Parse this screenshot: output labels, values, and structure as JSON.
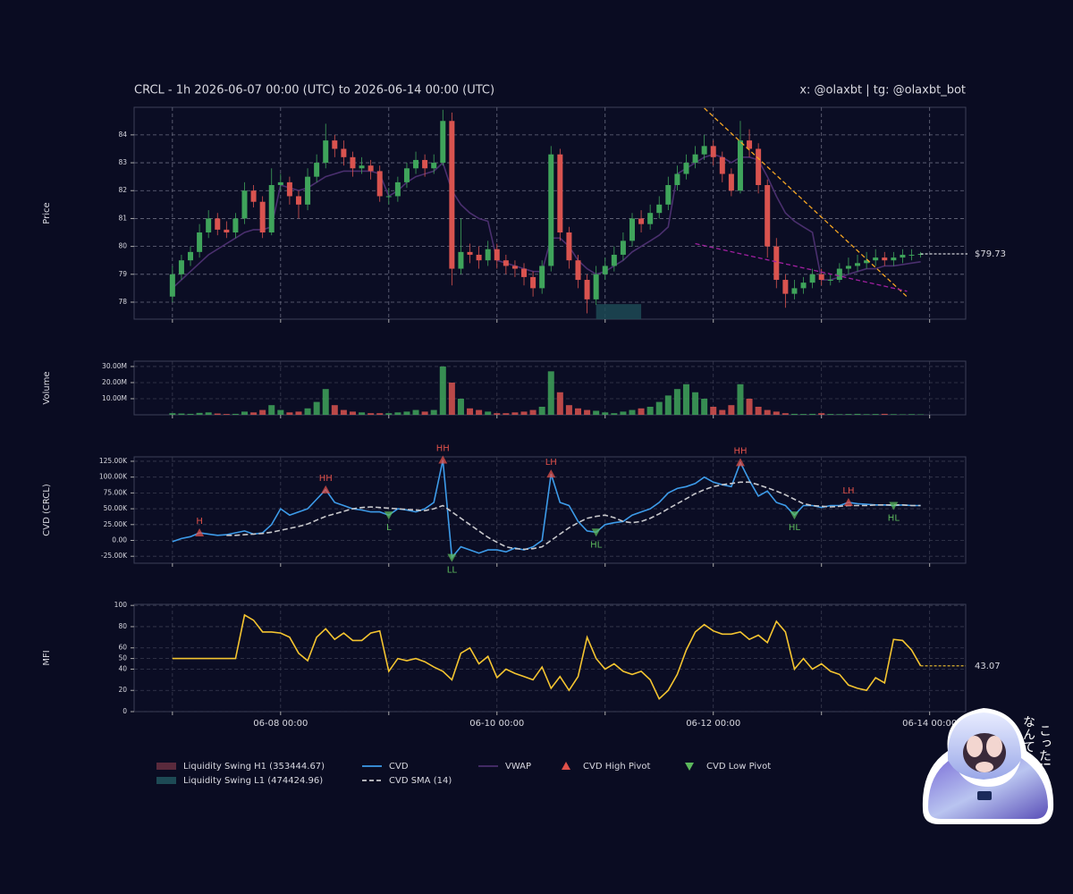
{
  "chart_data": {
    "type": "candlestick",
    "title": "CRCL - 1h 2026-06-07 00:00 (UTC) to 2026-06-14 00:00 (UTC)",
    "credit": "x: @olaxbt | tg: @olaxbt_bot",
    "xlim": [
      "06-06 15:30",
      "06-14 08:00"
    ],
    "xticks": [
      "06-08 00:00",
      "06-10 00:00",
      "06-12 00:00",
      "06-14 00:00"
    ],
    "xgrid": [
      "06-07 00:00",
      "06-08 00:00",
      "06-09 00:00",
      "06-10 00:00",
      "06-11 00:00",
      "06-12 00:00",
      "06-13 00:00",
      "06-14 00:00"
    ],
    "x": [
      "06-07 00:00",
      "06-07 02:00",
      "06-07 04:00",
      "06-07 06:00",
      "06-07 08:00",
      "06-07 10:00",
      "06-07 12:00",
      "06-07 14:00",
      "06-07 16:00",
      "06-07 18:00",
      "06-07 20:00",
      "06-07 22:00",
      "06-08 00:00",
      "06-08 02:00",
      "06-08 04:00",
      "06-08 06:00",
      "06-08 08:00",
      "06-08 10:00",
      "06-08 12:00",
      "06-08 14:00",
      "06-08 16:00",
      "06-08 18:00",
      "06-08 20:00",
      "06-08 22:00",
      "06-09 00:00",
      "06-09 02:00",
      "06-09 04:00",
      "06-09 06:00",
      "06-09 08:00",
      "06-09 10:00",
      "06-09 12:00",
      "06-09 14:00",
      "06-09 16:00",
      "06-09 18:00",
      "06-09 20:00",
      "06-09 22:00",
      "06-10 00:00",
      "06-10 02:00",
      "06-10 04:00",
      "06-10 06:00",
      "06-10 08:00",
      "06-10 10:00",
      "06-10 12:00",
      "06-10 14:00",
      "06-10 16:00",
      "06-10 18:00",
      "06-10 20:00",
      "06-10 22:00",
      "06-11 00:00",
      "06-11 02:00",
      "06-11 04:00",
      "06-11 06:00",
      "06-11 08:00",
      "06-11 10:00",
      "06-11 12:00",
      "06-11 14:00",
      "06-11 16:00",
      "06-11 18:00",
      "06-11 20:00",
      "06-11 22:00",
      "06-12 00:00",
      "06-12 02:00",
      "06-12 04:00",
      "06-12 06:00",
      "06-12 08:00",
      "06-12 10:00",
      "06-12 12:00",
      "06-12 14:00",
      "06-12 16:00",
      "06-12 18:00",
      "06-12 20:00",
      "06-12 22:00",
      "06-13 00:00",
      "06-13 02:00",
      "06-13 04:00",
      "06-13 06:00",
      "06-13 08:00",
      "06-13 10:00",
      "06-13 12:00",
      "06-13 14:00",
      "06-13 16:00",
      "06-13 18:00",
      "06-13 20:00",
      "06-13 22:00"
    ],
    "legend": "lower left",
    "price": {
      "type": "candlestick",
      "ylabel": "Price",
      "grid": true,
      "ylim": [
        77.39,
        84.99
      ],
      "yticks": [
        78,
        79,
        80,
        81,
        82,
        83,
        84
      ],
      "up_color": "#3fa45b",
      "down_color": "#d9534f",
      "open": [
        78.2,
        79.0,
        79.5,
        79.8,
        80.5,
        81.0,
        80.6,
        80.5,
        81.0,
        82.0,
        81.6,
        80.5,
        82.2,
        82.3,
        81.8,
        81.5,
        82.5,
        83.0,
        83.8,
        83.5,
        83.2,
        82.8,
        82.9,
        82.7,
        81.8,
        81.8,
        82.3,
        82.8,
        83.1,
        82.8,
        83.0,
        84.5,
        79.2,
        79.8,
        79.7,
        79.5,
        79.9,
        79.5,
        79.3,
        79.2,
        78.9,
        78.5,
        79.3,
        83.3,
        80.5,
        79.5,
        78.8,
        78.1,
        79.0,
        79.3,
        79.7,
        80.2,
        81.0,
        80.8,
        81.2,
        81.5,
        82.2,
        82.6,
        83.0,
        83.3,
        83.6,
        83.2,
        82.6,
        82.0,
        83.8,
        83.5,
        82.2,
        80.0,
        78.8,
        78.3,
        78.5,
        78.7,
        79.0,
        78.8,
        78.8,
        79.2,
        79.3,
        79.4,
        79.5,
        79.6,
        79.5,
        79.6,
        79.7,
        79.7
      ],
      "high": [
        79.3,
        79.7,
        80.0,
        80.8,
        81.3,
        81.2,
        80.9,
        81.2,
        82.3,
        82.2,
        81.8,
        82.8,
        82.6,
        82.5,
        82.0,
        82.8,
        83.3,
        84.4,
        84.0,
        83.8,
        83.4,
        83.2,
        83.1,
        82.9,
        82.1,
        82.5,
        83.0,
        83.4,
        83.3,
        83.3,
        84.9,
        84.8,
        81.0,
        80.1,
        80.0,
        80.2,
        80.1,
        79.7,
        79.5,
        79.4,
        79.1,
        79.5,
        83.6,
        83.5,
        80.7,
        79.7,
        79.0,
        79.3,
        79.6,
        80.0,
        80.5,
        81.2,
        81.3,
        81.5,
        81.8,
        82.5,
        82.9,
        83.3,
        83.6,
        84.0,
        83.8,
        83.4,
        82.8,
        84.5,
        84.2,
        83.7,
        82.4,
        80.3,
        79.0,
        78.8,
        78.9,
        79.2,
        79.2,
        79.0,
        79.4,
        79.6,
        79.7,
        79.8,
        79.9,
        79.8,
        79.8,
        79.9,
        79.9,
        79.8
      ],
      "low": [
        78.0,
        78.8,
        79.3,
        79.6,
        80.3,
        80.4,
        80.3,
        80.3,
        80.8,
        81.4,
        80.3,
        80.4,
        82.0,
        81.5,
        81.0,
        81.3,
        82.3,
        82.8,
        83.2,
        82.9,
        82.5,
        82.6,
        82.4,
        81.6,
        81.5,
        81.6,
        82.1,
        82.6,
        82.5,
        82.6,
        82.9,
        78.6,
        79.0,
        79.4,
        79.2,
        79.3,
        79.2,
        79.0,
        78.9,
        78.6,
        78.2,
        78.3,
        79.1,
        80.2,
        79.2,
        78.5,
        77.6,
        77.9,
        78.8,
        79.1,
        79.5,
        80.0,
        80.5,
        80.6,
        81.0,
        81.3,
        82.0,
        82.4,
        82.8,
        83.1,
        82.9,
        82.3,
        81.8,
        81.9,
        83.2,
        81.9,
        79.6,
        78.5,
        77.8,
        78.1,
        78.3,
        78.5,
        78.6,
        78.6,
        78.7,
        79.0,
        79.1,
        79.2,
        79.3,
        79.3,
        79.3,
        79.4,
        79.5,
        79.6
      ],
      "close": [
        79.0,
        79.5,
        79.8,
        80.5,
        81.0,
        80.6,
        80.5,
        81.0,
        82.0,
        81.6,
        80.5,
        82.2,
        82.3,
        81.8,
        81.5,
        82.5,
        83.0,
        83.8,
        83.5,
        83.2,
        82.8,
        82.9,
        82.7,
        81.8,
        81.8,
        82.3,
        82.8,
        83.1,
        82.8,
        83.0,
        84.5,
        79.2,
        79.8,
        79.7,
        79.5,
        79.9,
        79.5,
        79.3,
        79.2,
        78.9,
        78.5,
        79.3,
        83.3,
        80.5,
        79.5,
        78.8,
        78.1,
        79.0,
        79.3,
        79.7,
        80.2,
        81.0,
        80.8,
        81.2,
        81.5,
        82.2,
        82.6,
        83.0,
        83.3,
        83.6,
        83.2,
        82.6,
        82.0,
        83.8,
        83.5,
        82.2,
        80.0,
        78.8,
        78.3,
        78.5,
        78.7,
        79.0,
        78.8,
        78.8,
        79.2,
        79.3,
        79.4,
        79.5,
        79.6,
        79.5,
        79.6,
        79.7,
        79.7,
        79.73
      ],
      "vwap": {
        "name": "VWAP",
        "color": "#4a2f6e",
        "values": [
          78.5,
          78.8,
          79.1,
          79.4,
          79.7,
          79.9,
          80.1,
          80.3,
          80.5,
          80.6,
          80.6,
          80.7,
          82.2,
          82.1,
          82.0,
          82.1,
          82.3,
          82.5,
          82.6,
          82.7,
          82.7,
          82.7,
          82.7,
          82.6,
          81.8,
          82.0,
          82.3,
          82.5,
          82.6,
          82.7,
          83.0,
          82.0,
          81.5,
          81.2,
          81.0,
          80.9,
          79.5,
          79.4,
          79.3,
          79.2,
          79.1,
          79.1,
          80.3,
          80.3,
          80.0,
          79.5,
          79.2,
          79.0,
          79.1,
          79.3,
          79.5,
          79.8,
          80.0,
          80.2,
          80.4,
          80.7,
          82.6,
          82.8,
          83.0,
          83.2,
          83.3,
          83.2,
          83.0,
          83.2,
          83.2,
          83.1,
          82.5,
          81.8,
          81.2,
          80.9,
          80.7,
          80.5,
          78.8,
          78.8,
          78.9,
          79.0,
          79.1,
          79.2,
          79.2,
          79.3,
          79.3,
          79.35,
          79.4,
          79.45
        ]
      },
      "trendlines": [
        {
          "color": "#f5a623",
          "x": [
            "06-11 22:00",
            "06-13 19:00"
          ],
          "values": [
            84.96,
            78.19
          ]
        },
        {
          "color": "#a020a0",
          "x": [
            "06-11 20:00",
            "06-13 19:00"
          ],
          "values": [
            80.1,
            78.39
          ]
        }
      ],
      "liquidity_swings": [
        {
          "name": "Liquidity Swing H1 (353444.67)",
          "color": "#5a2a3c"
        },
        {
          "name": "Liquidity Swing L1 (474424.96)",
          "color": "#1d4a55",
          "x": [
            "06-10 22:00",
            "06-11 08:00"
          ],
          "range": [
            77.3,
            77.93
          ]
        }
      ],
      "last_price": {
        "value": 79.73,
        "label": "$79.73"
      }
    },
    "volume": {
      "type": "bar",
      "ylabel": "Volume",
      "grid": true,
      "ylim": [
        0,
        33300000
      ],
      "yticks": [
        {
          "value": 10000000,
          "label": "10.00M"
        },
        {
          "value": 20000000,
          "label": "20.00M"
        },
        {
          "value": 30000000,
          "label": "30.00M"
        }
      ],
      "values": [
        1000000,
        800000,
        600000,
        1200000,
        1500000,
        800000,
        500000,
        600000,
        2000000,
        1500000,
        3000000,
        6000000,
        3000000,
        1500000,
        2000000,
        4000000,
        8000000,
        16000000,
        6000000,
        3000000,
        2000000,
        1500000,
        1000000,
        1000000,
        1000000,
        1500000,
        2000000,
        3000000,
        2000000,
        3000000,
        30000000,
        20000000,
        10000000,
        4000000,
        3000000,
        2000000,
        1000000,
        1000000,
        1500000,
        2000000,
        3000000,
        5000000,
        27000000,
        14000000,
        6000000,
        4000000,
        3000000,
        2500000,
        1500000,
        1000000,
        2000000,
        3000000,
        4000000,
        5000000,
        8000000,
        12000000,
        16000000,
        19000000,
        14000000,
        10000000,
        5000000,
        3000000,
        6000000,
        19000000,
        10000000,
        5000000,
        3000000,
        2000000,
        1000000,
        600000,
        500000,
        600000,
        1000000,
        500000,
        400000,
        500000,
        600000,
        400000,
        500000,
        600000,
        400000,
        300000,
        400000,
        300000
      ]
    },
    "cvd": {
      "type": "line",
      "ylabel": "CVD (CRCL)",
      "grid": true,
      "ylim": [
        -36000,
        132000
      ],
      "yticks": [
        {
          "value": -25000,
          "label": "-25.00K"
        },
        {
          "value": 0,
          "label": "0.00"
        },
        {
          "value": 25000,
          "label": "25.00K"
        },
        {
          "value": 50000,
          "label": "50.00K"
        },
        {
          "value": 75000,
          "label": "75.00K"
        },
        {
          "value": 100000,
          "label": "100.00K"
        },
        {
          "value": 125000,
          "label": "125.00K"
        }
      ],
      "series": [
        {
          "name": "CVD",
          "color": "#3d9be9",
          "dash": false,
          "values": [
            -2000,
            3000,
            6000,
            12000,
            10000,
            8000,
            9000,
            12000,
            15000,
            10000,
            12000,
            25000,
            50000,
            40000,
            45000,
            50000,
            65000,
            80000,
            60000,
            55000,
            50000,
            48000,
            45000,
            45000,
            40000,
            50000,
            48000,
            45000,
            50000,
            60000,
            127000,
            -27000,
            -10000,
            -15000,
            -20000,
            -15000,
            -15000,
            -18000,
            -12000,
            -15000,
            -10000,
            0,
            105000,
            60000,
            55000,
            30000,
            15000,
            13000,
            25000,
            28000,
            30000,
            40000,
            45000,
            50000,
            60000,
            75000,
            82000,
            85000,
            90000,
            100000,
            92000,
            88000,
            85000,
            123000,
            95000,
            70000,
            78000,
            60000,
            55000,
            40000,
            55000,
            55000,
            52000,
            55000,
            55000,
            60000,
            58000,
            57000,
            56000,
            56000,
            55000,
            56000,
            55000,
            55000
          ]
        },
        {
          "name": "CVD SMA (14)",
          "color": "#c8c8cc",
          "dash": true,
          "values": [
            null,
            null,
            null,
            null,
            null,
            null,
            8000,
            8000,
            9000,
            10000,
            11000,
            13000,
            16000,
            19000,
            22000,
            26000,
            32000,
            38000,
            42000,
            46000,
            50000,
            52000,
            53000,
            52000,
            51000,
            50000,
            49000,
            48000,
            47000,
            50000,
            55000,
            45000,
            35000,
            25000,
            15000,
            5000,
            -3000,
            -10000,
            -13000,
            -14000,
            -13000,
            -10000,
            0,
            10000,
            20000,
            28000,
            35000,
            38000,
            40000,
            36000,
            30000,
            28000,
            30000,
            35000,
            42000,
            50000,
            58000,
            66000,
            74000,
            80000,
            85000,
            88000,
            90000,
            92000,
            92000,
            88000,
            83000,
            78000,
            72000,
            65000,
            58000,
            55000,
            54000,
            53000,
            54000,
            55000,
            55000,
            55000,
            56000,
            56000,
            56000,
            56000,
            55000,
            55000
          ]
        }
      ],
      "pivots": [
        {
          "name": "CVD High Pivot",
          "color": "#e0514a",
          "marker": "up",
          "x": [
            "06-07 06:00",
            "06-08 10:00",
            "06-09 12:00",
            "06-10 12:00",
            "06-12 06:00",
            "06-13 06:00"
          ],
          "values": [
            12000,
            80000,
            127000,
            105000,
            123000,
            60000
          ],
          "labels": [
            "H",
            "HH",
            "HH",
            "LH",
            "HH",
            "LH"
          ]
        },
        {
          "name": "CVD Low Pivot",
          "color": "#5cb85c",
          "marker": "down",
          "x": [
            "06-09 00:00",
            "06-09 14:00",
            "06-10 22:00",
            "06-12 18:00",
            "06-13 16:00"
          ],
          "values": [
            40000,
            -27000,
            13000,
            40000,
            55000
          ],
          "labels": [
            "L",
            "LL",
            "HL",
            "HL",
            "HL"
          ]
        }
      ]
    },
    "mfi": {
      "type": "line",
      "ylabel": "MFI",
      "grid": true,
      "ylim": [
        0,
        101
      ],
      "yticks": [
        0,
        20,
        40,
        50,
        60,
        80,
        100
      ],
      "series": [
        {
          "name": "MFI",
          "color": "#f4c430",
          "dash": false,
          "values": [
            50,
            50,
            50,
            50,
            50,
            50,
            50,
            50,
            91,
            86,
            75,
            75,
            74,
            70,
            55,
            48,
            70,
            78,
            68,
            74,
            67,
            67,
            74,
            76,
            38,
            50,
            48,
            50,
            47,
            42,
            38,
            30,
            55,
            60,
            45,
            52,
            32,
            40,
            36,
            33,
            30,
            42,
            22,
            33,
            20,
            33,
            70,
            50,
            40,
            45,
            38,
            35,
            38,
            30,
            12,
            20,
            35,
            58,
            75,
            82,
            76,
            73,
            73,
            75,
            68,
            72,
            65,
            85,
            75,
            40,
            50,
            40,
            45,
            38,
            35,
            25,
            22,
            20,
            32,
            27,
            68,
            67,
            58,
            43.07
          ]
        }
      ],
      "last_value": 43.07
    }
  },
  "sticker": {
    "lines": [
      "なんて",
      "こった!"
    ]
  }
}
